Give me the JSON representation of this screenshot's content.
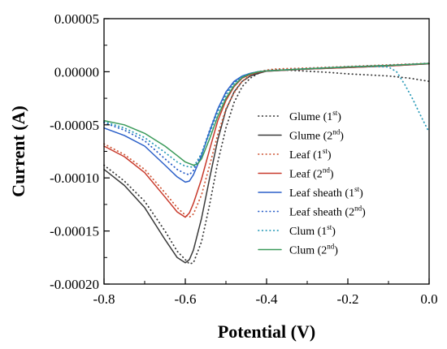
{
  "chart_data": {
    "type": "line",
    "xlabel": "Potential (V)",
    "ylabel": "Current (A)",
    "xlim": [
      -0.8,
      0.0
    ],
    "ylim": [
      -0.0002,
      5e-05
    ],
    "xticks": [
      -0.8,
      -0.6,
      -0.4,
      -0.2,
      0.0
    ],
    "xtick_labels": [
      "-0.8",
      "-0.6",
      "-0.4",
      "-0.2",
      "0.0"
    ],
    "yticks": [
      -0.0002,
      -0.00015,
      -0.0001,
      -5e-05,
      0.0,
      5e-05
    ],
    "ytick_labels": [
      "-0.00020",
      "-0.00015",
      "-0.00010",
      "-0.00005",
      "0.00000",
      "0.00005"
    ],
    "grid": false,
    "legend_position": "center-right",
    "series": [
      {
        "legend_main": "Glume (1",
        "legend_sup": "st",
        "legend_tail": ")",
        "color": "#3a3a3a",
        "style": "dotted",
        "x": [
          -0.8,
          -0.75,
          -0.7,
          -0.65,
          -0.62,
          -0.6,
          -0.59,
          -0.58,
          -0.56,
          -0.54,
          -0.52,
          -0.5,
          -0.48,
          -0.46,
          -0.44,
          -0.42,
          -0.4,
          -0.38,
          -0.35,
          -0.3,
          -0.25,
          -0.2,
          -0.15,
          -0.1,
          -0.05,
          0.0
        ],
        "y": [
          -8.8e-05,
          -0.000103,
          -0.000122,
          -0.00015,
          -0.000169,
          -0.000177,
          -0.000181,
          -0.00018,
          -0.00016,
          -0.000125,
          -8.5e-05,
          -5.3e-05,
          -2.9e-05,
          -1.4e-05,
          -6e-06,
          -1.5e-06,
          1.5e-06,
          2e-06,
          1.5e-06,
          5e-07,
          -5e-07,
          -2e-06,
          -3e-06,
          -4e-06,
          -6e-06,
          -9e-06
        ]
      },
      {
        "legend_main": "Glume (2",
        "legend_sup": "nd",
        "legend_tail": ")",
        "color": "#3a3a3a",
        "style": "solid",
        "x": [
          -0.8,
          -0.75,
          -0.7,
          -0.65,
          -0.62,
          -0.6,
          -0.59,
          -0.58,
          -0.56,
          -0.54,
          -0.52,
          -0.5,
          -0.48,
          -0.46,
          -0.44,
          -0.42,
          -0.4,
          -0.35,
          -0.3,
          -0.2,
          -0.1,
          0.0
        ],
        "y": [
          -9.2e-05,
          -0.000107,
          -0.000128,
          -0.000158,
          -0.000175,
          -0.00018,
          -0.000177,
          -0.000168,
          -0.000138,
          -0.0001,
          -6.4e-05,
          -3.6e-05,
          -1.9e-05,
          -9e-06,
          -4e-06,
          -1.5e-06,
          5e-07,
          1.5e-06,
          2.5e-06,
          4e-06,
          5.5e-06,
          7.5e-06
        ]
      },
      {
        "legend_main": "Leaf (1",
        "legend_sup": "st",
        "legend_tail": ")",
        "color": "#d05a3a",
        "style": "dotted",
        "x": [
          -0.8,
          -0.75,
          -0.7,
          -0.65,
          -0.62,
          -0.6,
          -0.59,
          -0.58,
          -0.56,
          -0.54,
          -0.52,
          -0.5,
          -0.48,
          -0.46,
          -0.44,
          -0.42,
          -0.4,
          -0.38,
          -0.35,
          -0.3,
          -0.2,
          -0.1,
          0.0
        ],
        "y": [
          -6.8e-05,
          -7.8e-05,
          -9.2e-05,
          -0.000114,
          -0.000128,
          -0.000135,
          -0.000137,
          -0.000134,
          -0.000116,
          -8.8e-05,
          -5.9e-05,
          -3.5e-05,
          -2e-05,
          -9e-06,
          -3e-06,
          0.0,
          1.5e-06,
          2.5e-06,
          3e-06,
          3.5e-06,
          5e-06,
          6.5e-06,
          8e-06
        ]
      },
      {
        "legend_main": "Leaf (2",
        "legend_sup": "nd",
        "legend_tail": ")",
        "color": "#c8392b",
        "style": "solid",
        "x": [
          -0.8,
          -0.75,
          -0.7,
          -0.65,
          -0.62,
          -0.6,
          -0.59,
          -0.58,
          -0.56,
          -0.54,
          -0.52,
          -0.5,
          -0.48,
          -0.46,
          -0.44,
          -0.42,
          -0.4,
          -0.35,
          -0.3,
          -0.2,
          -0.1,
          0.0
        ],
        "y": [
          -7e-05,
          -8e-05,
          -9.5e-05,
          -0.000118,
          -0.000132,
          -0.000137,
          -0.000133,
          -0.000124,
          -0.000101,
          -7.3e-05,
          -4.6e-05,
          -2.7e-05,
          -1.4e-05,
          -6e-06,
          -2.5e-06,
          -5e-07,
          5e-07,
          1.5e-06,
          2.5e-06,
          4e-06,
          5.5e-06,
          7.5e-06
        ]
      },
      {
        "legend_main": "Leaf sheath (1",
        "legend_sup": "st",
        "legend_tail": ")",
        "color": "#2a5fc8",
        "style": "solid",
        "x": [
          -0.8,
          -0.75,
          -0.7,
          -0.65,
          -0.62,
          -0.6,
          -0.59,
          -0.58,
          -0.56,
          -0.54,
          -0.52,
          -0.5,
          -0.48,
          -0.46,
          -0.44,
          -0.42,
          -0.4,
          -0.35,
          -0.3,
          -0.2,
          -0.1,
          0.0
        ],
        "y": [
          -5.3e-05,
          -6e-05,
          -7e-05,
          -8.8e-05,
          -9.9e-05,
          -0.000104,
          -0.000103,
          -9.7e-05,
          -7.9e-05,
          -5.6e-05,
          -3.5e-05,
          -1.9e-05,
          -9e-06,
          -4e-06,
          -1.5e-06,
          0.0,
          8e-07,
          1.8e-06,
          2.8e-06,
          4.5e-06,
          6e-06,
          7.8e-06
        ]
      },
      {
        "legend_main": "Leaf sheath (2",
        "legend_sup": "nd",
        "legend_tail": ")",
        "color": "#2a5fc8",
        "style": "dotted",
        "x": [
          -0.8,
          -0.75,
          -0.7,
          -0.65,
          -0.62,
          -0.6,
          -0.59,
          -0.58,
          -0.56,
          -0.54,
          -0.52,
          -0.5,
          -0.48,
          -0.46,
          -0.44,
          -0.42,
          -0.4,
          -0.35,
          -0.3,
          -0.2,
          -0.1,
          0.0
        ],
        "y": [
          -4.8e-05,
          -5.5e-05,
          -6.5e-05,
          -8.2e-05,
          -9.2e-05,
          -9.6e-05,
          -9.7e-05,
          -9.3e-05,
          -7.7e-05,
          -5.5e-05,
          -3.5e-05,
          -2e-05,
          -1e-05,
          -4.5e-06,
          -1.5e-06,
          0.0,
          8e-07,
          1.8e-06,
          2.8e-06,
          4.5e-06,
          6e-06,
          7.8e-06
        ]
      },
      {
        "legend_main": "Clum (1",
        "legend_sup": "st",
        "legend_tail": ")",
        "color": "#2a9bb8",
        "style": "dotted",
        "x": [
          -0.8,
          -0.75,
          -0.7,
          -0.65,
          -0.62,
          -0.6,
          -0.58,
          -0.56,
          -0.54,
          -0.52,
          -0.5,
          -0.48,
          -0.46,
          -0.44,
          -0.42,
          -0.4,
          -0.35,
          -0.3,
          -0.2,
          -0.15,
          -0.1,
          -0.08,
          -0.06,
          -0.04,
          -0.02,
          0.0
        ],
        "y": [
          -4.7e-05,
          -5.3e-05,
          -6.2e-05,
          -7.6e-05,
          -8.5e-05,
          -8.9e-05,
          -9e-05,
          -7.7e-05,
          -5.8e-05,
          -3.8e-05,
          -2.2e-05,
          -1.1e-05,
          -4.5e-06,
          -1.5e-06,
          0.0,
          8e-07,
          1.8e-06,
          2.8e-06,
          4.5e-06,
          5e-06,
          4.5e-06,
          0.0,
          -1.2e-05,
          -2.6e-05,
          -4.2e-05,
          -5.7e-05
        ]
      },
      {
        "legend_main": "Clum (2",
        "legend_sup": "nd",
        "legend_tail": ")",
        "color": "#3a9a5a",
        "style": "solid",
        "x": [
          -0.8,
          -0.75,
          -0.7,
          -0.65,
          -0.62,
          -0.6,
          -0.58,
          -0.57,
          -0.56,
          -0.54,
          -0.52,
          -0.5,
          -0.48,
          -0.46,
          -0.44,
          -0.42,
          -0.4,
          -0.35,
          -0.3,
          -0.2,
          -0.1,
          0.0
        ],
        "y": [
          -4.6e-05,
          -5e-05,
          -5.8e-05,
          -7e-05,
          -7.9e-05,
          -8.5e-05,
          -8.8e-05,
          -8.7e-05,
          -8.2e-05,
          -6.3e-05,
          -4.2e-05,
          -2.5e-05,
          -1.3e-05,
          -5.5e-06,
          -2e-06,
          0.0,
          8e-07,
          1.8e-06,
          2.8e-06,
          4.5e-06,
          6e-06,
          7.8e-06
        ]
      }
    ]
  }
}
